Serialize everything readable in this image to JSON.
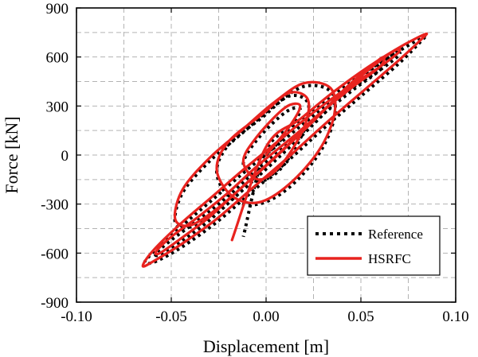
{
  "chart_data": {
    "type": "line",
    "title": "",
    "xlabel": "Displacement [m]",
    "ylabel": "Force [kN]",
    "xlim": [
      -0.1,
      0.1
    ],
    "ylim": [
      -900,
      900
    ],
    "xticks": [
      -0.1,
      -0.05,
      0.0,
      0.05,
      0.1
    ],
    "xtick_labels": [
      "-0.10",
      "-0.05",
      "0.00",
      "0.05",
      "0.10"
    ],
    "yticks": [
      -900,
      -600,
      -300,
      0,
      300,
      600,
      900
    ],
    "ytick_labels": [
      "-900",
      "-600",
      "-300",
      "0",
      "300",
      "600",
      "900"
    ],
    "grid": true,
    "legend_position": "bottom-right",
    "series": [
      {
        "name": "Reference",
        "style": "dotted",
        "color": "#000000",
        "x": [
          0,
          0.012,
          0.018,
          0.01,
          -0.005,
          -0.012,
          -0.004,
          0.008,
          0.02,
          0.022,
          0.012,
          -0.002,
          -0.02,
          -0.026,
          -0.018,
          -0.004,
          0.012,
          0.028,
          0.036,
          0.034,
          0.02,
          0.004,
          -0.012,
          -0.03,
          -0.044,
          -0.048,
          -0.04,
          -0.026,
          -0.01,
          0.008,
          0.026,
          0.042,
          0.056,
          0.062,
          0.06,
          0.046,
          0.03,
          0.014,
          -0.004,
          -0.02,
          -0.036,
          -0.05,
          -0.058,
          -0.056,
          -0.046,
          -0.03,
          -0.014,
          0.004,
          0.022,
          0.04,
          0.056,
          0.068,
          0.07,
          0.06,
          0.044,
          0.026,
          0.008,
          -0.01,
          -0.028,
          -0.046,
          -0.06,
          -0.064,
          -0.058,
          -0.044,
          -0.026,
          -0.008,
          0.012,
          0.032,
          0.052,
          0.07,
          0.082,
          0.084,
          0.072,
          0.054,
          0.036,
          0.018,
          0.0,
          -0.012
        ],
        "y": [
          0,
          150,
          280,
          260,
          90,
          -60,
          -160,
          -80,
          150,
          320,
          360,
          230,
          60,
          -110,
          -270,
          -300,
          -200,
          10,
          230,
          390,
          420,
          300,
          140,
          -40,
          -230,
          -410,
          -440,
          -350,
          -190,
          0,
          200,
          390,
          530,
          580,
          520,
          400,
          250,
          90,
          -80,
          -250,
          -400,
          -520,
          -600,
          -610,
          -540,
          -400,
          -230,
          -40,
          160,
          360,
          520,
          620,
          610,
          520,
          400,
          250,
          80,
          -90,
          -270,
          -450,
          -600,
          -660,
          -650,
          -560,
          -410,
          -230,
          -30,
          180,
          380,
          560,
          700,
          730,
          650,
          520,
          370,
          200,
          30,
          -500
        ]
      },
      {
        "name": "HSRFC",
        "style": "solid",
        "color": "#e8231f",
        "x": [
          0,
          0.012,
          0.018,
          0.01,
          -0.005,
          -0.012,
          -0.004,
          0.008,
          0.02,
          0.022,
          0.012,
          -0.002,
          -0.02,
          -0.026,
          -0.018,
          -0.004,
          0.012,
          0.028,
          0.036,
          0.034,
          0.02,
          0.004,
          -0.012,
          -0.03,
          -0.044,
          -0.048,
          -0.04,
          -0.026,
          -0.01,
          0.008,
          0.026,
          0.042,
          0.056,
          0.062,
          0.06,
          0.046,
          0.03,
          0.014,
          -0.004,
          -0.02,
          -0.036,
          -0.05,
          -0.058,
          -0.056,
          -0.046,
          -0.03,
          -0.014,
          0.004,
          0.022,
          0.04,
          0.056,
          0.068,
          0.07,
          0.06,
          0.044,
          0.026,
          0.008,
          -0.01,
          -0.028,
          -0.046,
          -0.06,
          -0.065,
          -0.058,
          -0.044,
          -0.026,
          -0.008,
          0.012,
          0.032,
          0.052,
          0.07,
          0.082,
          0.084,
          0.072,
          0.054,
          0.036,
          0.018,
          0.0,
          -0.018
        ],
        "y": [
          0,
          170,
          300,
          290,
          110,
          -40,
          -150,
          -60,
          170,
          340,
          380,
          250,
          80,
          -90,
          -250,
          -290,
          -180,
          30,
          250,
          410,
          440,
          320,
          160,
          -20,
          -210,
          -390,
          -430,
          -330,
          -170,
          20,
          220,
          410,
          550,
          600,
          540,
          420,
          270,
          110,
          -60,
          -230,
          -380,
          -500,
          -590,
          -600,
          -520,
          -380,
          -210,
          -20,
          180,
          380,
          540,
          640,
          630,
          540,
          420,
          270,
          100,
          -70,
          -250,
          -430,
          -590,
          -680,
          -640,
          -540,
          -390,
          -210,
          -10,
          200,
          400,
          580,
          710,
          740,
          670,
          540,
          390,
          220,
          50,
          -520
        ]
      }
    ]
  }
}
